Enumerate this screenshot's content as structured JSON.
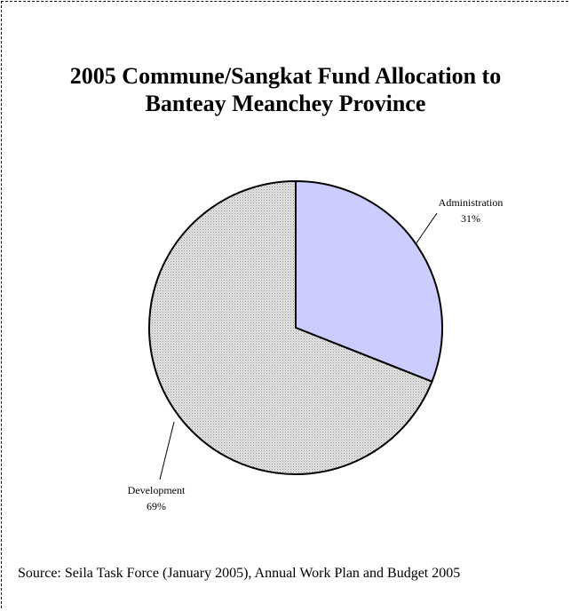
{
  "chart_data": {
    "type": "pie",
    "title": [
      "2005 Commune/Sangkat Fund Allocation to",
      "Banteay Meanchey Province"
    ],
    "categories": [
      "Administration",
      "Development"
    ],
    "values": [
      31,
      69
    ],
    "value_labels": [
      "31%",
      "69%"
    ],
    "colors": {
      "Administration": "#ccccff",
      "Development": "#d9d9d9"
    },
    "legend": "none",
    "labels": "outside with leader lines"
  },
  "source": "Source: Seila Task Force (January 2005), Annual Work Plan and Budget 2005"
}
